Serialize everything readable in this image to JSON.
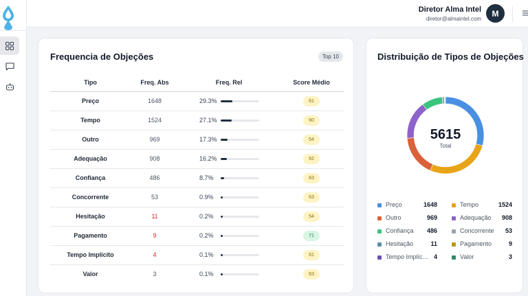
{
  "header": {
    "user_name": "Diretor Alma Intel",
    "user_email": "diretor@almaintel.com",
    "avatar_initial": "M"
  },
  "sidebar": {
    "items": [
      {
        "name": "dashboard-icon",
        "active": true
      },
      {
        "name": "chat-icon",
        "active": false
      },
      {
        "name": "robot-icon",
        "active": false
      }
    ]
  },
  "left_card": {
    "title": "Frequencia de Objeções",
    "badge": "Top 10",
    "columns": [
      "Tipo",
      "Freq. Abs",
      "Freq. Rel",
      "Score Médio"
    ],
    "rows": [
      {
        "tipo": "Preço",
        "abs": "1648",
        "abs_color": "#4b5563",
        "rel": "29.3%",
        "rel_value": 29.3,
        "score": "61",
        "score_bg": "#fdf3c4",
        "score_color": "#8a6d0b"
      },
      {
        "tipo": "Tempo",
        "abs": "1524",
        "abs_color": "#4b5563",
        "rel": "27.1%",
        "rel_value": 27.1,
        "score": "60",
        "score_bg": "#fdf3c4",
        "score_color": "#8a6d0b"
      },
      {
        "tipo": "Outro",
        "abs": "969",
        "abs_color": "#4b5563",
        "rel": "17.3%",
        "rel_value": 17.3,
        "score": "54",
        "score_bg": "#fdf3c4",
        "score_color": "#8a6d0b"
      },
      {
        "tipo": "Adequação",
        "abs": "908",
        "abs_color": "#4b5563",
        "rel": "16.2%",
        "rel_value": 16.2,
        "score": "62",
        "score_bg": "#fdf3c4",
        "score_color": "#8a6d0b"
      },
      {
        "tipo": "Confiança",
        "abs": "486",
        "abs_color": "#4b5563",
        "rel": "8.7%",
        "rel_value": 8.7,
        "score": "63",
        "score_bg": "#fdf3c4",
        "score_color": "#8a6d0b"
      },
      {
        "tipo": "Concorrente",
        "abs": "53",
        "abs_color": "#4b5563",
        "rel": "0.9%",
        "rel_value": 0.9,
        "score": "63",
        "score_bg": "#fdf3c4",
        "score_color": "#8a6d0b"
      },
      {
        "tipo": "Hesitação",
        "abs": "11",
        "abs_color": "#dc2626",
        "rel": "0.2%",
        "rel_value": 0.2,
        "score": "54",
        "score_bg": "#fdf3c4",
        "score_color": "#8a6d0b"
      },
      {
        "tipo": "Pagamento",
        "abs": "9",
        "abs_color": "#dc2626",
        "rel": "0.2%",
        "rel_value": 0.2,
        "score": "71",
        "score_bg": "#d9f5e4",
        "score_color": "#1f7a45"
      },
      {
        "tipo": "Tempo Implícito",
        "abs": "4",
        "abs_color": "#dc2626",
        "rel": "0.1%",
        "rel_value": 0.1,
        "score": "61",
        "score_bg": "#fdf3c4",
        "score_color": "#8a6d0b"
      },
      {
        "tipo": "Valor",
        "abs": "3",
        "abs_color": "#4b5563",
        "rel": "0.1%",
        "rel_value": 0.1,
        "score": "63",
        "score_bg": "#fdf3c4",
        "score_color": "#8a6d0b"
      }
    ]
  },
  "right_card": {
    "title": "Distribuição de Tipos de Objeções",
    "total_value": "5615",
    "total_label": "Total"
  },
  "chart_data": {
    "type": "pie",
    "title": "Distribuição de Tipos de Objeções",
    "center_value": 5615,
    "center_label": "Total",
    "categories": [
      "Preço",
      "Tempo",
      "Outro",
      "Adequação",
      "Confiança",
      "Concorrente",
      "Hesitação",
      "Pagamento",
      "Tempo Implícito",
      "Valor"
    ],
    "values": [
      1648,
      1524,
      969,
      908,
      486,
      53,
      11,
      9,
      4,
      3
    ],
    "value_labels": [
      "1648",
      "1524",
      "969",
      "908",
      "486",
      "53",
      "11",
      "9",
      "4",
      "3"
    ],
    "colors": [
      "#4a90e2",
      "#e8a317",
      "#d9623b",
      "#8e63c9",
      "#3ac47d",
      "#9aa5b1",
      "#5a8fa8",
      "#b89a0e",
      "#6d4fb3",
      "#2e8b6e"
    ],
    "legend_order": [
      0,
      1,
      2,
      3,
      4,
      5,
      6,
      7,
      8,
      9
    ],
    "legend_labels": [
      "Preço",
      "Tempo",
      "Outro",
      "Adequação",
      "Confiança",
      "Concorrente",
      "Hesitação",
      "Pagamento",
      "Tempo Implíc…",
      "Valor"
    ],
    "ring_order": [
      0,
      4,
      3,
      2,
      1
    ],
    "legend_placement": "bottom"
  }
}
